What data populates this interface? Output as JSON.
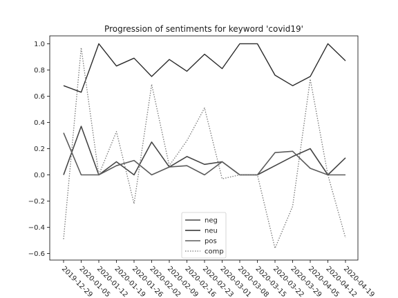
{
  "chart_data": {
    "type": "line",
    "title": "Progression of sentiments for keyword 'covid19'",
    "xlabel": "",
    "ylabel": "",
    "categories": [
      "2019-12-29",
      "2020-01-05",
      "2020-01-12",
      "2020-01-19",
      "2020-01-26",
      "2020-02-02",
      "2020-02-09",
      "2020-02-16",
      "2020-02-23",
      "2020-03-01",
      "2020-03-08",
      "2020-03-15",
      "2020-03-22",
      "2020-03-29",
      "2020-04-05",
      "2020-04-12",
      "2020-04-19"
    ],
    "ylim": [
      -0.65,
      1.06
    ],
    "yticks": [
      -0.6,
      -0.4,
      -0.2,
      0.0,
      0.2,
      0.4,
      0.6,
      0.8,
      1.0
    ],
    "ytick_labels": [
      "−0.6",
      "−0.4",
      "−0.2",
      "0.0",
      "0.2",
      "0.4",
      "0.6",
      "0.8",
      "1.0"
    ],
    "grid": false,
    "legend_position": "lower center",
    "series": [
      {
        "name": "neg",
        "color": "#444444",
        "dash": "none",
        "width": 1.6,
        "values": [
          0.0,
          0.37,
          0.0,
          0.1,
          0.0,
          0.25,
          0.06,
          0.14,
          0.08,
          0.1,
          0.0,
          0.0,
          0.07,
          0.14,
          0.2,
          0.0,
          0.13
        ]
      },
      {
        "name": "neu",
        "color": "#2a2a2a",
        "dash": "none",
        "width": 1.4,
        "values": [
          0.68,
          0.63,
          1.0,
          0.83,
          0.89,
          0.75,
          0.88,
          0.79,
          0.92,
          0.81,
          1.0,
          1.0,
          0.76,
          0.68,
          0.75,
          1.0,
          0.87
        ]
      },
      {
        "name": "pos",
        "color": "#5a5a5a",
        "dash": "none",
        "width": 1.6,
        "values": [
          0.32,
          0.0,
          0.0,
          0.07,
          0.11,
          0.0,
          0.06,
          0.07,
          0.0,
          0.1,
          0.0,
          0.0,
          0.17,
          0.18,
          0.05,
          0.0,
          0.0
        ]
      },
      {
        "name": "comp",
        "color": "#777777",
        "dash": "1.5,2",
        "width": 1.3,
        "values": [
          -0.49,
          0.97,
          0.0,
          0.33,
          -0.22,
          0.69,
          0.07,
          0.26,
          0.51,
          -0.03,
          0.0,
          0.0,
          -0.56,
          -0.24,
          0.73,
          0.0,
          -0.48
        ]
      }
    ]
  }
}
